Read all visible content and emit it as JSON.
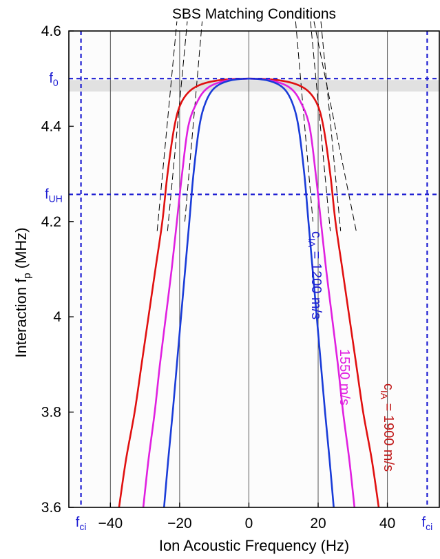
{
  "chart_data": {
    "type": "line",
    "title": "SBS Matching Conditions",
    "xlabel": "Ion Acoustic Frequency  (Hz)",
    "ylabel": "Interaction f",
    "ylabel_sub": "p",
    "ylabel_unit": " (MHz)",
    "xlim": [
      -52,
      55
    ],
    "ylim": [
      3.6,
      4.6
    ],
    "x_ticks": [
      -40,
      -20,
      0,
      20,
      40
    ],
    "x_tick_labels": [
      "−40",
      "−20",
      "0",
      "20",
      "40"
    ],
    "y_ticks": [
      3.6,
      3.8,
      4,
      4.2,
      4.4,
      4.6
    ],
    "y_tick_labels": [
      "3.6",
      "3.8",
      "4",
      "4.2",
      "4.4",
      "4.6"
    ],
    "vertical_grid_x": [
      -40,
      -20,
      0,
      20,
      40
    ],
    "reference_lines": [
      {
        "orientation": "horizontal",
        "value": 4.5,
        "label": "f",
        "sub": "0",
        "color": "#1e1ed2"
      },
      {
        "orientation": "horizontal",
        "value": 4.257,
        "label": "f",
        "sub": "UH",
        "color": "#1e1ed2"
      },
      {
        "orientation": "vertical",
        "value": -48.5,
        "label": "f",
        "sub": "ci",
        "color": "#1e1ed2"
      },
      {
        "orientation": "vertical",
        "value": 51.5,
        "label": "f",
        "sub": "ci",
        "color": "#1e1ed2"
      }
    ],
    "shaded_band": {
      "y": [
        4.473,
        4.497
      ],
      "color": "#e1e1e1"
    },
    "series": [
      {
        "name": "c_IA = 1900 m/s",
        "color": "#e01010",
        "x": [
          -37.5,
          -35.5,
          -33,
          -31,
          -29,
          -27,
          -25,
          -23.5,
          -21.5,
          -19.5,
          -16,
          -10,
          0,
          10,
          16,
          19.5,
          21.5,
          23.5,
          25,
          27,
          29,
          31,
          33,
          35.5,
          37.5
        ],
        "y": [
          3.6,
          3.7,
          3.8,
          3.9,
          4.0,
          4.1,
          4.2,
          4.3,
          4.4,
          4.45,
          4.48,
          4.495,
          4.5,
          4.495,
          4.48,
          4.45,
          4.4,
          4.3,
          4.2,
          4.1,
          4.0,
          3.9,
          3.8,
          3.7,
          3.6
        ]
      },
      {
        "name": "1550 m/s",
        "color": "#e020e0",
        "x": [
          -30.5,
          -29,
          -27.2,
          -25.7,
          -24,
          -22.3,
          -20.8,
          -19.3,
          -17.5,
          -15,
          -12,
          -7,
          0,
          7,
          12,
          15,
          17.5,
          19.3,
          20.8,
          22.3,
          24,
          25.7,
          27.2,
          29,
          30.5
        ],
        "y": [
          3.6,
          3.7,
          3.8,
          3.9,
          4.0,
          4.1,
          4.2,
          4.3,
          4.4,
          4.45,
          4.48,
          4.495,
          4.5,
          4.495,
          4.48,
          4.45,
          4.4,
          4.3,
          4.2,
          4.1,
          4.0,
          3.9,
          3.8,
          3.7,
          3.6
        ]
      },
      {
        "name": "c_IA = 1200 m/s",
        "color": "#1a3cd8",
        "x": [
          -24.5,
          -23.3,
          -22,
          -20.8,
          -19.6,
          -18.4,
          -17.2,
          -16,
          -14.3,
          -12.5,
          -10,
          -6,
          0,
          6,
          10,
          12.5,
          14.3,
          16,
          17.2,
          18.4,
          19.6,
          20.8,
          22,
          23.3,
          24.5
        ],
        "y": [
          3.6,
          3.7,
          3.8,
          3.9,
          4.0,
          4.1,
          4.2,
          4.3,
          4.4,
          4.45,
          4.48,
          4.495,
          4.5,
          4.495,
          4.48,
          4.45,
          4.4,
          4.3,
          4.2,
          4.1,
          4.0,
          3.9,
          3.8,
          3.7,
          3.6
        ]
      }
    ],
    "dashed_asymptotes": {
      "color": "#000000",
      "segments": [
        {
          "x": [
            -26.5,
            -20.8
          ],
          "y": [
            4.18,
            4.62
          ]
        },
        {
          "x": [
            -23.5,
            -17.8
          ],
          "y": [
            4.18,
            4.62
          ]
        },
        {
          "x": [
            -18.5,
            -13.5
          ],
          "y": [
            4.2,
            4.62
          ]
        },
        {
          "x": [
            13.5,
            18.5
          ],
          "y": [
            4.62,
            4.2
          ]
        },
        {
          "x": [
            17.8,
            23.5
          ],
          "y": [
            4.62,
            4.18
          ]
        },
        {
          "x": [
            20.8,
            26.5
          ],
          "y": [
            4.62,
            4.18
          ]
        },
        {
          "x": [
            18.8,
            31.0
          ],
          "y": [
            4.62,
            4.18
          ]
        }
      ]
    },
    "curve_labels": [
      {
        "text": "c",
        "sub": "IA",
        "rest": " = 1200 m/s",
        "color": "#1e1ed2"
      },
      {
        "text": "1550 m/s",
        "sub": "",
        "rest": "",
        "color": "#e020e0"
      },
      {
        "text": "c",
        "sub": "IA",
        "rest": " = 1900 m/s",
        "color": "#c01818"
      }
    ],
    "grid": false,
    "legend": "none"
  }
}
